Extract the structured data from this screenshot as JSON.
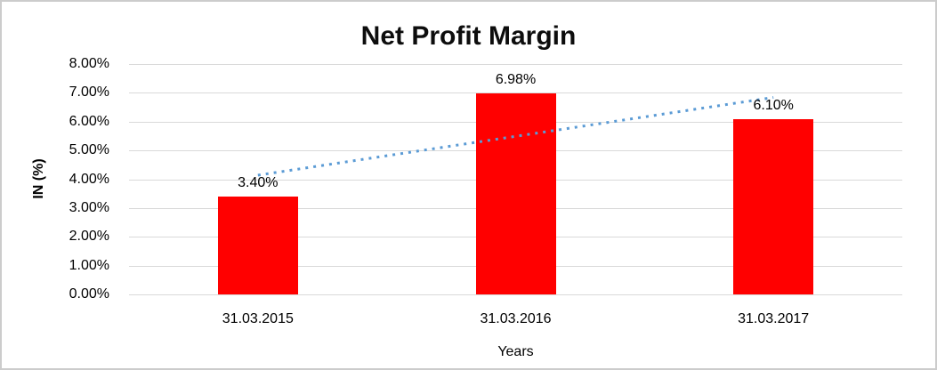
{
  "chart_data": {
    "type": "bar",
    "title": "Net Profit Margin",
    "xlabel": "Years",
    "ylabel": "IN (%)",
    "categories": [
      "31.03.2015",
      "31.03.2016",
      "31.03.2017"
    ],
    "values": [
      3.4,
      6.98,
      6.1
    ],
    "data_labels": [
      "3.40%",
      "6.98%",
      "6.10%"
    ],
    "ylim": [
      0,
      8
    ],
    "ytick_step": 1,
    "ytick_labels": [
      "0.00%",
      "1.00%",
      "2.00%",
      "3.00%",
      "4.00%",
      "5.00%",
      "6.00%",
      "7.00%",
      "8.00%"
    ],
    "grid": true,
    "legend": "none",
    "bar_color": "#ff0000",
    "gridline_color": "#d9d9d9",
    "trendline": {
      "type": "linear",
      "style": "dotted",
      "color": "#5b9bd5",
      "start_value": 4.14,
      "end_value": 6.84
    }
  }
}
